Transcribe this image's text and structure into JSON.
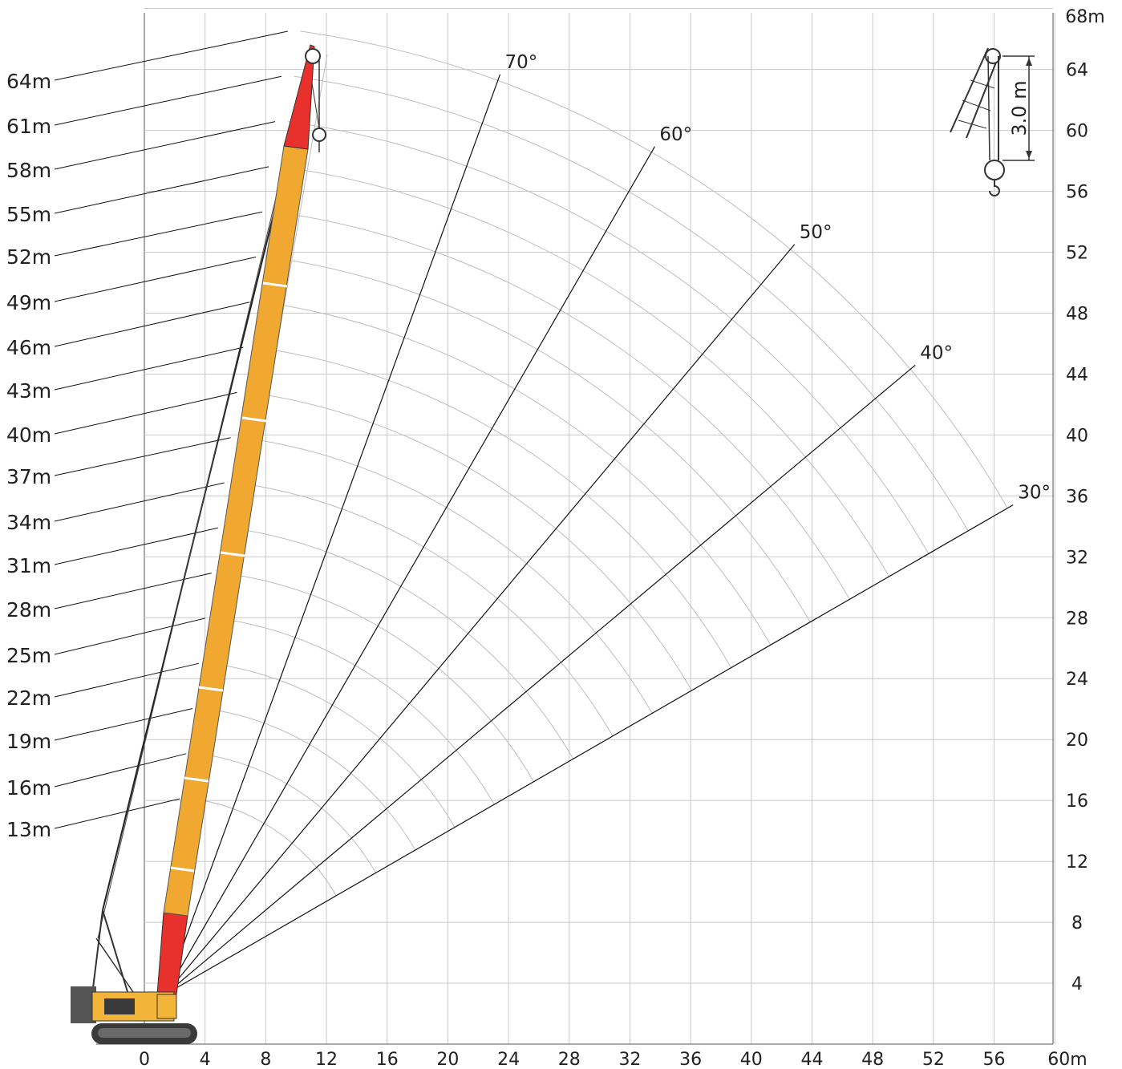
{
  "diagram": {
    "x_axis": {
      "ticks": [
        "0",
        "4",
        "8",
        "12",
        "16",
        "20",
        "24",
        "28",
        "32",
        "36",
        "40",
        "44",
        "48",
        "52",
        "56"
      ],
      "unit_label": "60m",
      "range_m": [
        0,
        60
      ]
    },
    "y_axis": {
      "ticks": [
        "4",
        "8",
        "12",
        "16",
        "20",
        "24",
        "28",
        "32",
        "36",
        "40",
        "44",
        "48",
        "52",
        "56",
        "60",
        "64"
      ],
      "unit_label": "68m",
      "range_m": [
        0,
        68
      ]
    },
    "boom_lengths": [
      "64m",
      "61m",
      "58m",
      "55m",
      "52m",
      "49m",
      "46m",
      "43m",
      "40m",
      "37m",
      "34m",
      "31m",
      "28m",
      "25m",
      "22m",
      "19m",
      "16m",
      "13m"
    ],
    "angle_lines": [
      "70°",
      "60°",
      "50°",
      "40°",
      "30°"
    ],
    "inset": {
      "dimension_label": "3.0 m"
    },
    "colors": {
      "boom_main": "#f0a830",
      "boom_tip": "#e8302c",
      "grid": "#c8c8c8",
      "crane_body": "#f2b53a",
      "tracks": "#3a3a3a",
      "counterweight": "#555555"
    }
  }
}
